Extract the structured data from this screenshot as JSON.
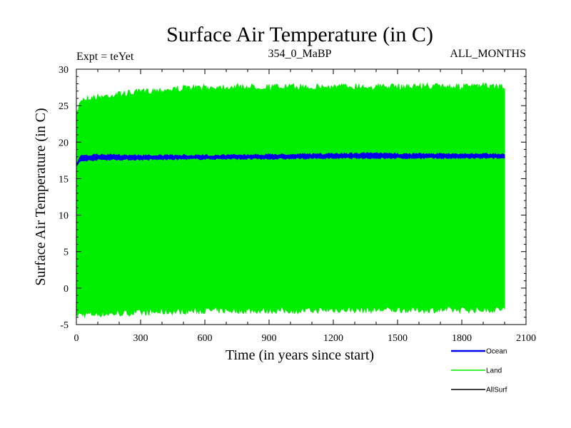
{
  "chart_data": {
    "type": "line",
    "title": "Surface Air Temperature (in C)",
    "subtitle_left": "Expt = teYet",
    "subtitle_center": "354_0_MaBP",
    "subtitle_right": "ALL_MONTHS",
    "xlabel": "Time (in years since start)",
    "ylabel": "Surface Air Temperature (in C)",
    "xlim": [
      0,
      2100
    ],
    "ylim": [
      -5,
      30
    ],
    "xticks": [
      0,
      300,
      600,
      900,
      1200,
      1500,
      1800,
      2100
    ],
    "yticks": [
      -5,
      0,
      5,
      10,
      15,
      20,
      25,
      30
    ],
    "x_range_data": [
      0,
      2000
    ],
    "series": [
      {
        "name": "Land",
        "color": "#00ee00",
        "kind": "band",
        "upper": [
          {
            "x": 0,
            "y": 24.0
          },
          {
            "x": 20,
            "y": 26.3
          },
          {
            "x": 100,
            "y": 26.6
          },
          {
            "x": 200,
            "y": 27.0
          },
          {
            "x": 300,
            "y": 27.3
          },
          {
            "x": 400,
            "y": 27.6
          },
          {
            "x": 500,
            "y": 27.8
          },
          {
            "x": 600,
            "y": 27.9
          },
          {
            "x": 700,
            "y": 28.0
          },
          {
            "x": 800,
            "y": 28.0
          },
          {
            "x": 900,
            "y": 28.0
          },
          {
            "x": 1000,
            "y": 28.0
          },
          {
            "x": 1100,
            "y": 28.0
          },
          {
            "x": 1200,
            "y": 28.0
          },
          {
            "x": 1300,
            "y": 28.1
          },
          {
            "x": 1400,
            "y": 28.0
          },
          {
            "x": 1500,
            "y": 28.0
          },
          {
            "x": 1600,
            "y": 28.1
          },
          {
            "x": 1700,
            "y": 28.1
          },
          {
            "x": 1800,
            "y": 28.0
          },
          {
            "x": 1900,
            "y": 28.1
          },
          {
            "x": 2000,
            "y": 28.0
          }
        ],
        "lower": [
          {
            "x": 0,
            "y": -4.0
          },
          {
            "x": 100,
            "y": -4.0
          },
          {
            "x": 200,
            "y": -3.9
          },
          {
            "x": 300,
            "y": -3.8
          },
          {
            "x": 400,
            "y": -3.7
          },
          {
            "x": 500,
            "y": -3.6
          },
          {
            "x": 600,
            "y": -3.5
          },
          {
            "x": 700,
            "y": -3.5
          },
          {
            "x": 800,
            "y": -3.5
          },
          {
            "x": 900,
            "y": -3.5
          },
          {
            "x": 1000,
            "y": -3.5
          },
          {
            "x": 1100,
            "y": -3.5
          },
          {
            "x": 1200,
            "y": -3.4
          },
          {
            "x": 1300,
            "y": -3.4
          },
          {
            "x": 1400,
            "y": -3.4
          },
          {
            "x": 1500,
            "y": -3.4
          },
          {
            "x": 1600,
            "y": -3.4
          },
          {
            "x": 1700,
            "y": -3.4
          },
          {
            "x": 1800,
            "y": -3.4
          },
          {
            "x": 1900,
            "y": -3.4
          },
          {
            "x": 2000,
            "y": -3.3
          }
        ]
      },
      {
        "name": "Ocean",
        "color": "#0000ee",
        "kind": "band",
        "upper": [
          {
            "x": 0,
            "y": 17.2
          },
          {
            "x": 20,
            "y": 18.2
          },
          {
            "x": 100,
            "y": 18.4
          },
          {
            "x": 300,
            "y": 18.3
          },
          {
            "x": 600,
            "y": 18.3
          },
          {
            "x": 900,
            "y": 18.4
          },
          {
            "x": 1200,
            "y": 18.5
          },
          {
            "x": 1350,
            "y": 18.6
          },
          {
            "x": 1500,
            "y": 18.5
          },
          {
            "x": 1800,
            "y": 18.5
          },
          {
            "x": 2000,
            "y": 18.5
          }
        ],
        "lower": [
          {
            "x": 0,
            "y": 16.6
          },
          {
            "x": 20,
            "y": 17.3
          },
          {
            "x": 100,
            "y": 17.5
          },
          {
            "x": 300,
            "y": 17.5
          },
          {
            "x": 600,
            "y": 17.6
          },
          {
            "x": 900,
            "y": 17.6
          },
          {
            "x": 1200,
            "y": 17.7
          },
          {
            "x": 1500,
            "y": 17.7
          },
          {
            "x": 1800,
            "y": 17.7
          },
          {
            "x": 2000,
            "y": 17.7
          }
        ]
      },
      {
        "name": "AllSurf",
        "color": "#000000",
        "kind": "line",
        "values": []
      }
    ],
    "legend": [
      {
        "label": "Ocean",
        "color": "#0000ee"
      },
      {
        "label": "Land",
        "color": "#00ee00"
      },
      {
        "label": "AllSurf",
        "color": "#000000"
      }
    ],
    "legend_placement": "bottom-right"
  }
}
